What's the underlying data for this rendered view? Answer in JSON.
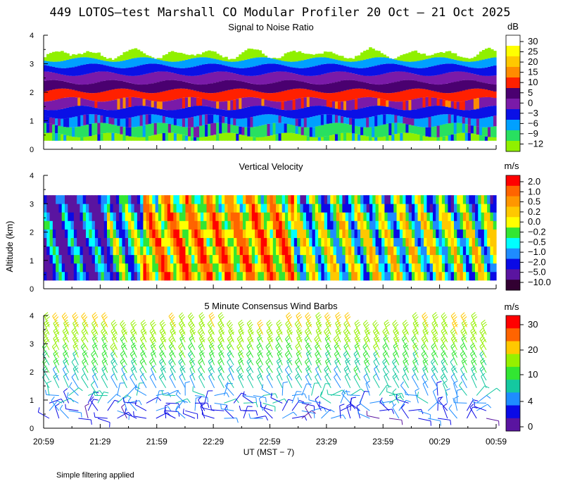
{
  "title": "449 LOTOS—test Marshall CO Modular Profiler 20 Oct — 21 Oct 2025",
  "ylabel": "Altitude (km)",
  "xlabel": "UT  (MST − 7)",
  "footnote": "Simple filtering applied",
  "x_tick_labels": [
    "20:59",
    "21:29",
    "21:59",
    "22:29",
    "22:59",
    "23:29",
    "23:59",
    "00:29",
    "00:59"
  ],
  "y_tick_labels": [
    "0",
    "1",
    "2",
    "3",
    "4"
  ],
  "chart_data": [
    {
      "type": "heatmap",
      "title": "Signal to Noise Ratio",
      "units": "dB",
      "xlim": [
        "20:59",
        "00:59"
      ],
      "ylim": [
        0,
        4
      ],
      "data_top_km": 3.3,
      "colorbar": {
        "labels": [
          "30",
          "25",
          "20",
          "15",
          "10",
          "5",
          "0",
          "−3",
          "−6",
          "−9",
          "−12"
        ],
        "colors": [
          "#ffffff",
          "#ffff00",
          "#ffc800",
          "#ff8c00",
          "#ff2000",
          "#4a0070",
          "#7a1aa8",
          "#0a10e6",
          "#00a0ff",
          "#28e060",
          "#90f000"
        ]
      },
      "profile_km": [
        0.3,
        0.7,
        1.0,
        1.3,
        1.6,
        1.9,
        2.2,
        2.5,
        2.8,
        3.05,
        3.25
      ],
      "profile_class": [
        10,
        9,
        8,
        7,
        6,
        4,
        5,
        6,
        7,
        8,
        10
      ]
    },
    {
      "type": "heatmap",
      "title": "Vertical Velocity",
      "units": "m/s",
      "xlim": [
        "20:59",
        "00:59"
      ],
      "ylim": [
        0,
        4
      ],
      "data_top_km": 3.3,
      "colorbar": {
        "labels": [
          "2.0",
          "1.0",
          "0.5",
          "0.2",
          "0.0",
          "−0.2",
          "−0.5",
          "−1.0",
          "−2.0",
          "−5.0",
          "−10.0"
        ],
        "colors": [
          "#ff0000",
          "#ff6400",
          "#ff9600",
          "#ffc800",
          "#ffff00",
          "#32e632",
          "#00ffff",
          "#1e8cff",
          "#0a0ae6",
          "#5a14a0",
          "#320032"
        ]
      },
      "dominant_by_period": [
        "downward (blue)",
        "upward (orange/yellow)",
        "mixed",
        "mixed"
      ]
    },
    {
      "type": "wind barbs",
      "title": "5 Minute Consensus Wind Barbs",
      "units": "m/s",
      "xlim": [
        "20:59",
        "00:59"
      ],
      "ylim": [
        0,
        4
      ],
      "colorbar": {
        "labels": [
          "30",
          "20",
          "10",
          "4",
          "0"
        ],
        "colors": [
          "#ff0000",
          "#ff6400",
          "#ffc800",
          "#96f000",
          "#32e632",
          "#14c8a0",
          "#1e8cff",
          "#0a0ae6",
          "#5a14a0"
        ]
      },
      "speed_profile": {
        "altitude_km": [
          0.3,
          0.7,
          1.0,
          1.5,
          2.0,
          2.5,
          3.0,
          3.5
        ],
        "speed_ms": [
          4,
          5,
          6,
          7,
          9,
          11,
          14,
          17
        ]
      },
      "barb_direction": "westerly to north-westerly aloft, variable below 1.2 km"
    }
  ]
}
